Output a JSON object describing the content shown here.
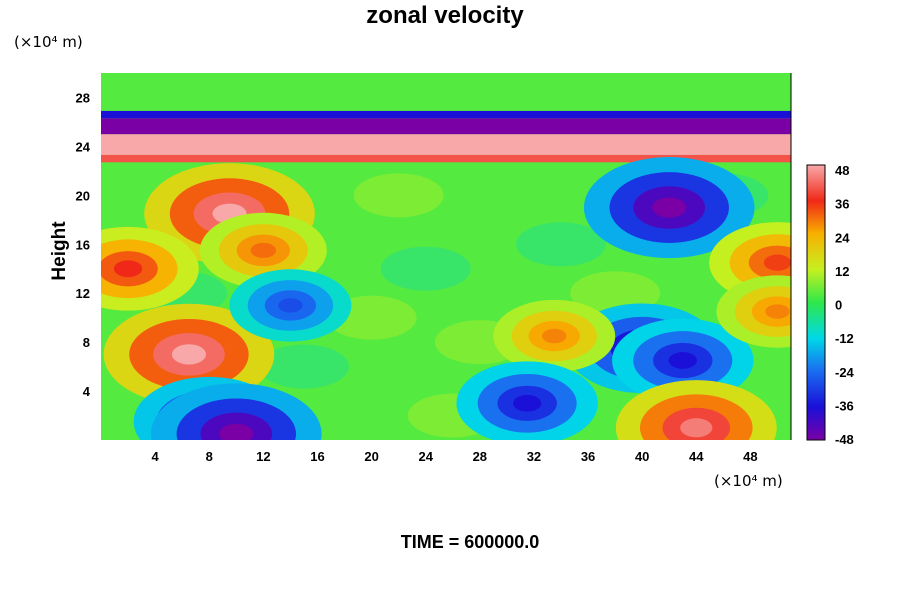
{
  "chart_data": {
    "type": "heatmap",
    "title": "zonal velocity",
    "ylabel": "Height",
    "x_unit": "(×10⁴ m)",
    "y_unit": "(×10⁴ m)",
    "x_ticks": [
      4,
      8,
      12,
      16,
      20,
      24,
      28,
      32,
      36,
      40,
      44,
      48
    ],
    "y_ticks": [
      4,
      8,
      12,
      16,
      20,
      24,
      28
    ],
    "xlim": [
      0,
      51
    ],
    "ylim": [
      0,
      30
    ],
    "colorbar_ticks": [
      48,
      36,
      24,
      12,
      0,
      -12,
      -24,
      -36,
      -48
    ],
    "colorbar_range": [
      -48,
      48
    ],
    "footer": "TIME = 600000.0",
    "features": [
      {
        "x": 6.5,
        "y": 7.0,
        "value": 48
      },
      {
        "x": 9.5,
        "y": 18.5,
        "value": 48
      },
      {
        "x": 2.0,
        "y": 14.0,
        "value": 36
      },
      {
        "x": 12.0,
        "y": 15.5,
        "value": 30
      },
      {
        "x": 8.0,
        "y": 1.5,
        "value": -40
      },
      {
        "x": 10.0,
        "y": 0.5,
        "value": -48
      },
      {
        "x": 40.0,
        "y": 7.5,
        "value": -40
      },
      {
        "x": 43.0,
        "y": 6.5,
        "value": -36
      },
      {
        "x": 42.0,
        "y": 19.0,
        "value": -48
      },
      {
        "x": 44.0,
        "y": 1.0,
        "value": 44
      },
      {
        "x": 33.5,
        "y": 8.5,
        "value": 28
      },
      {
        "x": 31.5,
        "y": 3.0,
        "value": -36
      },
      {
        "x": 14.0,
        "y": 11.0,
        "value": -28
      },
      {
        "x": 50.0,
        "y": 14.5,
        "value": 34
      },
      {
        "x": 50.0,
        "y": 10.5,
        "value": 28
      }
    ],
    "bands": [
      {
        "y0": 23.3,
        "y1": 25.0,
        "value": 48
      },
      {
        "y0": 22.7,
        "y1": 23.3,
        "value": 40
      },
      {
        "y0": 25.0,
        "y1": 26.3,
        "value": -48
      },
      {
        "y0": 26.3,
        "y1": 26.9,
        "value": -36
      }
    ]
  }
}
